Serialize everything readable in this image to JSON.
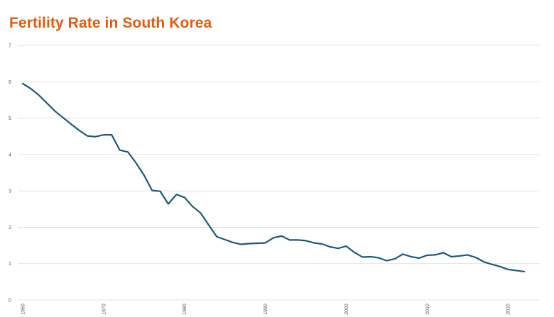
{
  "colors": {
    "title": "#e8590c",
    "line": "#1a5a78",
    "grid": "#d9d9d9",
    "axis_text": "#595959"
  },
  "chart_data": {
    "type": "line",
    "title": "Fertility Rate in South Korea",
    "xlabel": "",
    "ylabel": "",
    "xlim": [
      1960,
      2022
    ],
    "ylim": [
      0,
      7
    ],
    "grid": true,
    "legend": "none",
    "y_ticks": [
      "0",
      "1",
      "2",
      "3",
      "4",
      "5",
      "6",
      "7"
    ],
    "x_ticks": [
      "1960",
      "1970",
      "1980",
      "1990",
      "2000",
      "2010",
      "2020"
    ],
    "series": [
      {
        "x": [
          1960,
          1961,
          1962,
          1963,
          1964,
          1965,
          1966,
          1967,
          1968,
          1969,
          1970,
          1971,
          1972,
          1973,
          1974,
          1975,
          1976,
          1977,
          1978,
          1979,
          1980,
          1981,
          1982,
          1983,
          1984,
          1985,
          1986,
          1987,
          1988,
          1989,
          1990,
          1991,
          1992,
          1993,
          1994,
          1995,
          1996,
          1997,
          1998,
          1999,
          2000,
          2001,
          2002,
          2003,
          2004,
          2005,
          2006,
          2007,
          2008,
          2009,
          2010,
          2011,
          2012,
          2013,
          2014,
          2015,
          2016,
          2017,
          2018,
          2019,
          2020,
          2021,
          2022
        ],
        "values": [
          5.95,
          5.81,
          5.63,
          5.41,
          5.19,
          5.01,
          4.83,
          4.66,
          4.51,
          4.49,
          4.54,
          4.54,
          4.12,
          4.07,
          3.77,
          3.43,
          3.01,
          2.99,
          2.64,
          2.9,
          2.82,
          2.57,
          2.39,
          2.06,
          1.74,
          1.66,
          1.58,
          1.53,
          1.55,
          1.56,
          1.57,
          1.71,
          1.76,
          1.65,
          1.65,
          1.63,
          1.57,
          1.54,
          1.46,
          1.42,
          1.48,
          1.31,
          1.18,
          1.19,
          1.16,
          1.08,
          1.13,
          1.26,
          1.19,
          1.15,
          1.23,
          1.24,
          1.3,
          1.19,
          1.21,
          1.24,
          1.17,
          1.05,
          0.98,
          0.92,
          0.84,
          0.81,
          0.78
        ]
      }
    ]
  }
}
